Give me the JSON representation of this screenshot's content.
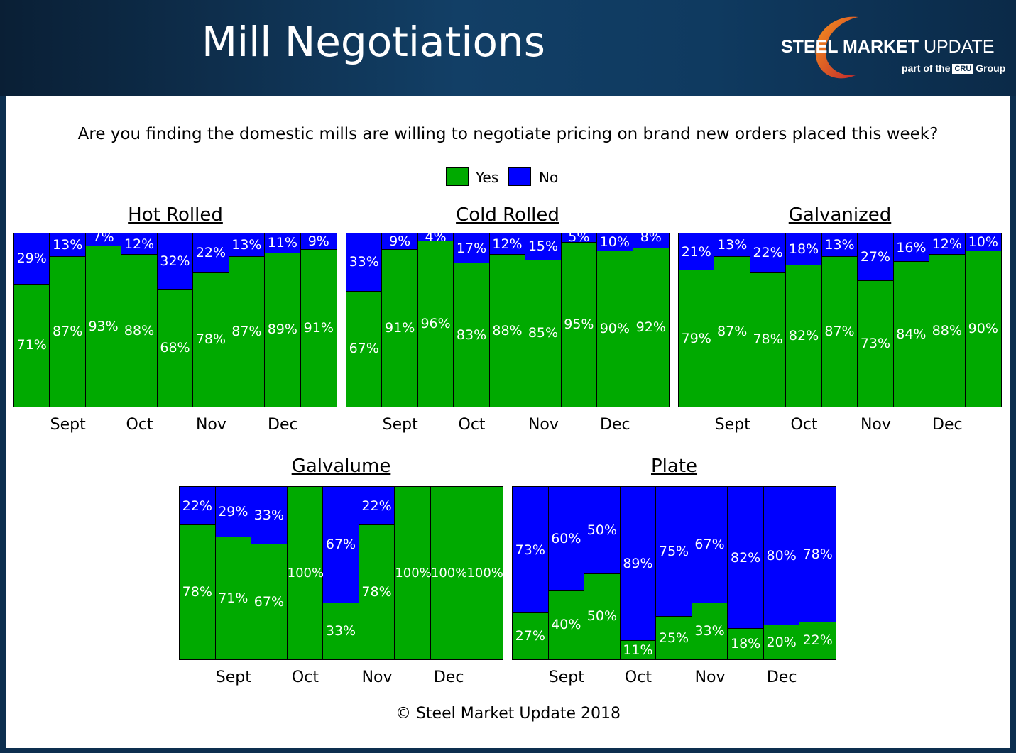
{
  "header": {
    "title": "Mill Negotiations",
    "brand_bold": "STEEL MARKET",
    "brand_light": " UPDATE",
    "sub_prefix": "part of the",
    "sub_cru": "CRU",
    "sub_suffix": "Group"
  },
  "question": "Are you finding the domestic mills are willing to negotiate pricing on brand new orders placed this week?",
  "legend": [
    {
      "label": "Yes",
      "color": "#00aa00"
    },
    {
      "label": "No",
      "color": "#0000ff"
    }
  ],
  "copyright": "© Steel Market Update 2018",
  "colors": {
    "yes": "#00aa00",
    "no": "#0000ff"
  },
  "chart_data": [
    {
      "type": "bar",
      "stacked": true,
      "title": "Hot Rolled",
      "x_tick_labels": [
        "Sept",
        "Oct",
        "Nov",
        "Dec"
      ],
      "series": [
        {
          "name": "Yes",
          "values": [
            71,
            87,
            93,
            88,
            68,
            78,
            87,
            89,
            91
          ]
        },
        {
          "name": "No",
          "values": [
            29,
            13,
            7,
            12,
            32,
            22,
            13,
            11,
            9
          ]
        }
      ],
      "ylim": [
        0,
        100
      ]
    },
    {
      "type": "bar",
      "stacked": true,
      "title": "Cold Rolled",
      "x_tick_labels": [
        "Sept",
        "Oct",
        "Nov",
        "Dec"
      ],
      "series": [
        {
          "name": "Yes",
          "values": [
            67,
            91,
            96,
            83,
            88,
            85,
            95,
            90,
            92
          ]
        },
        {
          "name": "No",
          "values": [
            33,
            9,
            4,
            17,
            12,
            15,
            5,
            10,
            8
          ]
        }
      ],
      "ylim": [
        0,
        100
      ]
    },
    {
      "type": "bar",
      "stacked": true,
      "title": "Galvanized",
      "x_tick_labels": [
        "Sept",
        "Oct",
        "Nov",
        "Dec"
      ],
      "series": [
        {
          "name": "Yes",
          "values": [
            79,
            87,
            78,
            82,
            87,
            73,
            84,
            88,
            90
          ]
        },
        {
          "name": "No",
          "values": [
            21,
            13,
            22,
            18,
            13,
            27,
            16,
            12,
            10
          ]
        }
      ],
      "ylim": [
        0,
        100
      ]
    },
    {
      "type": "bar",
      "stacked": true,
      "title": "Galvalume",
      "x_tick_labels": [
        "Sept",
        "Oct",
        "Nov",
        "Dec"
      ],
      "series": [
        {
          "name": "Yes",
          "values": [
            78,
            71,
            67,
            100,
            33,
            78,
            100,
            100,
            100
          ]
        },
        {
          "name": "No",
          "values": [
            22,
            29,
            33,
            0,
            67,
            22,
            0,
            0,
            0
          ]
        }
      ],
      "ylim": [
        0,
        100
      ]
    },
    {
      "type": "bar",
      "stacked": true,
      "title": "Plate",
      "x_tick_labels": [
        "Sept",
        "Oct",
        "Nov",
        "Dec"
      ],
      "series": [
        {
          "name": "Yes",
          "values": [
            27,
            40,
            50,
            11,
            25,
            33,
            18,
            20,
            22
          ]
        },
        {
          "name": "No",
          "values": [
            73,
            60,
            50,
            89,
            75,
            67,
            82,
            80,
            78
          ]
        }
      ],
      "ylim": [
        0,
        100
      ]
    }
  ]
}
